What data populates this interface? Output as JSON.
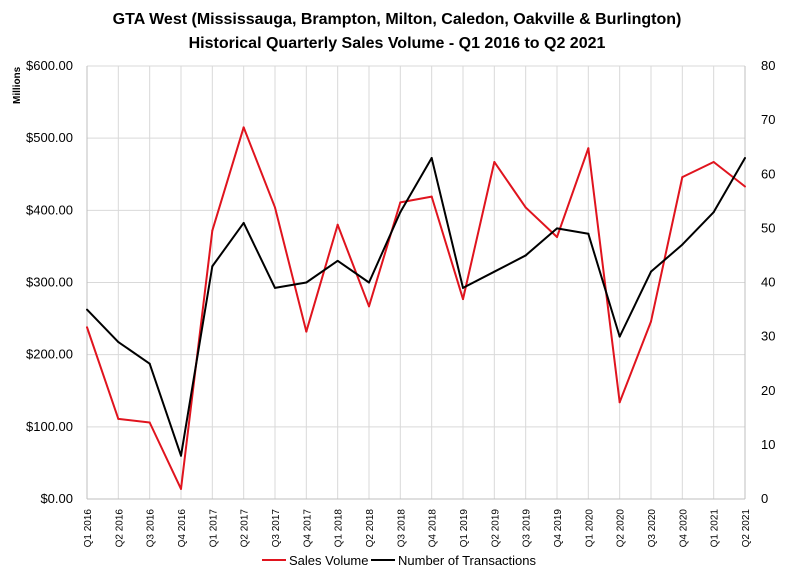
{
  "chart_data": {
    "type": "line",
    "title": "GTA West (Mississauga, Brampton, Milton, Caledon, Oakville & Burlington)",
    "subtitle": "Historical Quarterly Sales Volume - Q1 2016 to Q2 2021",
    "y_unit_label": "Millions",
    "categories": [
      "Q1 2016",
      "Q2 2016",
      "Q3 2016",
      "Q4 2016",
      "Q1 2017",
      "Q2 2017",
      "Q3 2017",
      "Q4 2017",
      "Q1 2018",
      "Q2 2018",
      "Q3 2018",
      "Q4 2018",
      "Q1 2019",
      "Q2 2019",
      "Q3 2019",
      "Q4 2019",
      "Q1 2020",
      "Q2 2020",
      "Q3 2020",
      "Q4 2020",
      "Q1 2021",
      "Q2 2021"
    ],
    "y_left": {
      "range": [
        0,
        600
      ],
      "ticks": [
        0,
        100,
        200,
        300,
        400,
        500,
        600
      ],
      "tick_labels": [
        "$0.00",
        "$100.00",
        "$200.00",
        "$300.00",
        "$400.00",
        "$500.00",
        "$600.00"
      ]
    },
    "y_right": {
      "range": [
        0,
        80
      ],
      "ticks": [
        0,
        10,
        20,
        30,
        40,
        50,
        60,
        70,
        80
      ],
      "tick_labels": [
        "0",
        "10",
        "20",
        "30",
        "40",
        "50",
        "60",
        "70",
        "80"
      ]
    },
    "grid": true,
    "legend_position": "bottom",
    "series": [
      {
        "name": "Sales Volume",
        "axis": "left",
        "color": "#e0141e",
        "values": [
          238,
          111,
          106,
          14,
          372,
          515,
          404,
          232,
          380,
          267,
          411,
          419,
          277,
          467,
          404,
          363,
          486,
          134,
          246,
          446,
          467,
          433
        ]
      },
      {
        "name": "Number of Transactions",
        "axis": "right",
        "color": "#000000",
        "values": [
          35,
          29,
          25,
          8,
          43,
          51,
          39,
          40,
          44,
          40,
          53,
          63,
          39,
          42,
          45,
          50,
          49,
          30,
          42,
          47,
          53,
          63
        ]
      }
    ]
  }
}
